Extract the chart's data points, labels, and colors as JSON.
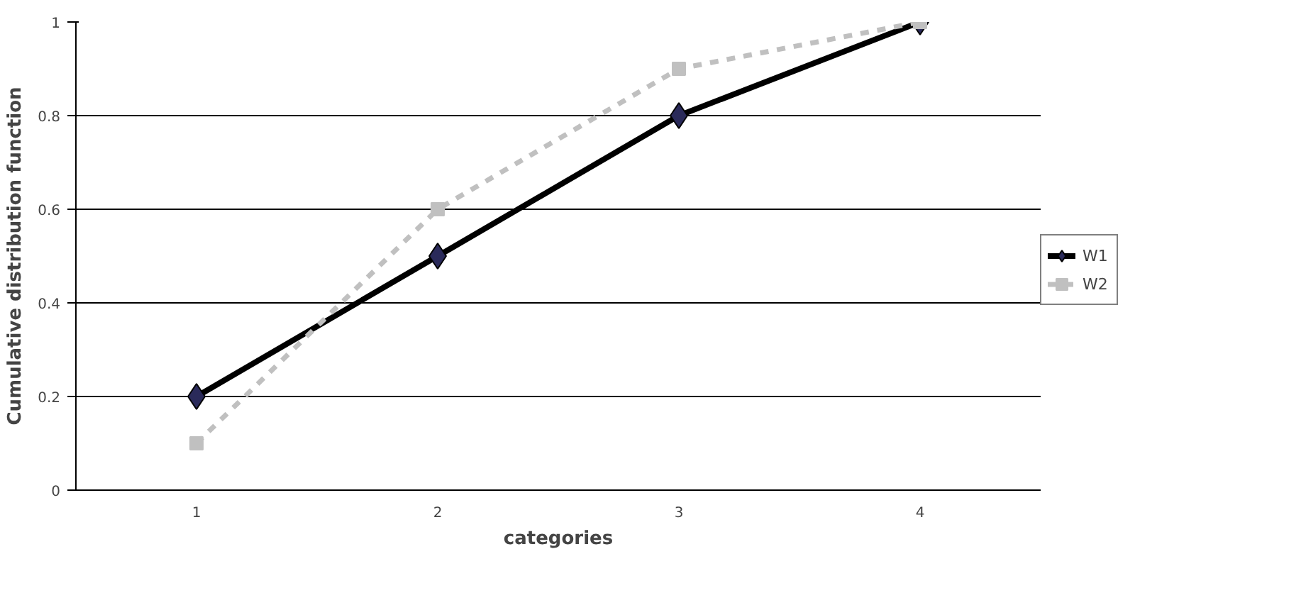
{
  "chart_data": {
    "type": "line",
    "xlabel": "categories",
    "ylabel": "Cumulative distribution function",
    "categories": [
      "1",
      "2",
      "3",
      "4"
    ],
    "ylim": [
      0,
      1
    ],
    "yticks": [
      0,
      0.2,
      0.4,
      0.6,
      0.8,
      1
    ],
    "grid": "y",
    "legend": "right",
    "series": [
      {
        "name": "W1",
        "color": "#000000",
        "values": [
          0.2,
          0.5,
          0.8,
          1.0
        ],
        "marker": "diamond",
        "line_style": "solid"
      },
      {
        "name": "W2",
        "color": "#c0c0c0",
        "values": [
          0.1,
          0.6,
          0.9,
          1.0
        ],
        "marker": "square",
        "line_style": "dashed"
      }
    ]
  }
}
